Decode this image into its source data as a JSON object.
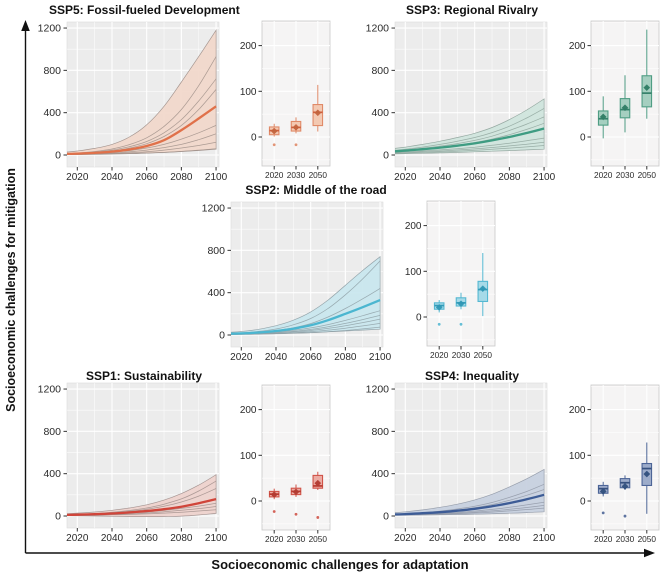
{
  "figure": {
    "y_axis_label": "Socioeconomic challenges for mitigation",
    "x_axis_label": "Socioeconomic challenges for adaptation"
  },
  "chart_data": [
    {
      "id": "ssp5",
      "title": "SSP5: Fossil-fueled Development",
      "colors": {
        "line": "#E0714A",
        "band": "#F2D8CB",
        "member": "#A0908A",
        "panel_bg": "#ECECEC",
        "box_panel_bg": "#F5F4F4",
        "box_fill": "#F3C9B2",
        "box_border": "#E08A68",
        "box_median": "#CE5F3C",
        "mean": "#C2653F",
        "outlier": "#E08A68"
      },
      "line_chart": {
        "type": "line",
        "x_label": "year",
        "x_ticks": [
          2020,
          2040,
          2060,
          2080,
          2100
        ],
        "y_ticks": [
          0,
          400,
          800,
          1200
        ],
        "ylim": [
          -113,
          1257
        ],
        "years": [
          2014,
          2020,
          2030,
          2040,
          2050,
          2060,
          2070,
          2080,
          2090,
          2100
        ],
        "median": [
          10,
          13,
          20,
          32,
          52,
          85,
          140,
          235,
          345,
          460
        ],
        "band_upper": [
          28,
          38,
          62,
          100,
          170,
          285,
          460,
          690,
          930,
          1180
        ],
        "band_lower": [
          4,
          5,
          7,
          10,
          14,
          19,
          25,
          33,
          43,
          55
        ],
        "members": [
          [
            14,
            19,
            33,
            57,
            98,
            163,
            270,
            430,
            655,
            930
          ],
          [
            12,
            16,
            27,
            46,
            78,
            128,
            210,
            335,
            510,
            720
          ],
          [
            10,
            14,
            23,
            39,
            65,
            107,
            175,
            280,
            430,
            620
          ],
          [
            8,
            10,
            16,
            26,
            42,
            66,
            100,
            150,
            210,
            280
          ],
          [
            6,
            8,
            12,
            19,
            30,
            46,
            70,
            100,
            145,
            200
          ],
          [
            5,
            6,
            9,
            14,
            21,
            31,
            46,
            66,
            90,
            120
          ],
          [
            4,
            5,
            7,
            9,
            13,
            18,
            25,
            34,
            46,
            60
          ]
        ]
      },
      "boxplot": {
        "type": "boxplot",
        "y_ticks": [
          0,
          100,
          200
        ],
        "ylim": [
          -63,
          254
        ],
        "categories": [
          "2020",
          "2030",
          "2050"
        ],
        "boxes": [
          {
            "lo": 1,
            "q1": 5,
            "median": 14,
            "mean": 13,
            "q3": 22,
            "hi": 29,
            "outliers": [
              -17
            ]
          },
          {
            "lo": 8,
            "q1": 13,
            "median": 21,
            "mean": 21,
            "q3": 34,
            "hi": 43,
            "outliers": [
              -17
            ]
          },
          {
            "lo": 12,
            "q1": 25,
            "median": 54,
            "mean": 53,
            "q3": 71,
            "hi": 114,
            "outliers": []
          }
        ]
      }
    },
    {
      "id": "ssp3",
      "title": "SSP3: Regional Rivalry",
      "colors": {
        "line": "#3E9C82",
        "band": "#CFE5DD",
        "member": "#8FA49C",
        "panel_bg": "#ECECEC",
        "box_panel_bg": "#F5F4F4",
        "box_fill": "#A5CFC0",
        "box_border": "#4F9D84",
        "box_median": "#35816A",
        "mean": "#2E7C64",
        "outlier": "#4F9D84"
      },
      "line_chart": {
        "type": "line",
        "x_label": "year",
        "x_ticks": [
          2020,
          2040,
          2060,
          2080,
          2100
        ],
        "y_ticks": [
          0,
          400,
          800,
          1200
        ],
        "ylim": [
          -113,
          1257
        ],
        "years": [
          2014,
          2020,
          2030,
          2040,
          2050,
          2060,
          2070,
          2080,
          2090,
          2100
        ],
        "median": [
          35,
          42,
          55,
          70,
          88,
          110,
          138,
          170,
          208,
          250
        ],
        "band_upper": [
          62,
          75,
          100,
          130,
          165,
          205,
          260,
          335,
          425,
          530
        ],
        "band_lower": [
          10,
          12,
          16,
          20,
          25,
          30,
          36,
          42,
          48,
          55
        ],
        "members": [
          [
            45,
            55,
            75,
            100,
            130,
            165,
            212,
            272,
            350,
            440
          ],
          [
            40,
            48,
            64,
            84,
            108,
            138,
            178,
            232,
            292,
            360
          ],
          [
            35,
            42,
            56,
            72,
            92,
            118,
            150,
            192,
            242,
            300
          ],
          [
            25,
            30,
            38,
            48,
            60,
            74,
            92,
            112,
            135,
            160
          ],
          [
            20,
            24,
            30,
            38,
            47,
            58,
            71,
            86,
            102,
            120
          ],
          [
            15,
            18,
            23,
            29,
            36,
            44,
            54,
            65,
            77,
            90
          ]
        ]
      },
      "boxplot": {
        "type": "boxplot",
        "y_ticks": [
          0,
          100,
          200
        ],
        "ylim": [
          -63,
          254
        ],
        "categories": [
          "2020",
          "2030",
          "2050"
        ],
        "boxes": [
          {
            "lo": -3,
            "q1": 26,
            "median": 40,
            "mean": 44,
            "q3": 57,
            "hi": 89,
            "outliers": []
          },
          {
            "lo": 10,
            "q1": 42,
            "median": 60,
            "mean": 64,
            "q3": 84,
            "hi": 135,
            "outliers": []
          },
          {
            "lo": 40,
            "q1": 66,
            "median": 96,
            "mean": 108,
            "q3": 134,
            "hi": 235,
            "outliers": []
          }
        ]
      }
    },
    {
      "id": "ssp2",
      "title": "SSP2: Middle of the road",
      "colors": {
        "line": "#4BB6D0",
        "band": "#C9E7EF",
        "member": "#8FA0A6",
        "panel_bg": "#ECECEC",
        "box_panel_bg": "#F5F4F4",
        "box_fill": "#A6DAE8",
        "box_border": "#55B8D2",
        "box_median": "#339BB8",
        "mean": "#2F97B5",
        "outlier": "#55B8D2"
      },
      "line_chart": {
        "type": "line",
        "x_label": "year",
        "x_ticks": [
          2020,
          2040,
          2060,
          2080,
          2100
        ],
        "y_ticks": [
          0,
          400,
          800,
          1200
        ],
        "ylim": [
          -113,
          1257
        ],
        "years": [
          2014,
          2020,
          2030,
          2040,
          2050,
          2060,
          2070,
          2080,
          2090,
          2100
        ],
        "median": [
          12,
          15,
          24,
          38,
          60,
          92,
          140,
          200,
          263,
          330
        ],
        "band_upper": [
          26,
          33,
          54,
          88,
          140,
          218,
          330,
          470,
          610,
          740
        ],
        "band_lower": [
          5,
          6,
          9,
          12,
          17,
          23,
          30,
          38,
          46,
          55
        ],
        "members": [
          [
            15,
            20,
            34,
            57,
            96,
            156,
            250,
            380,
            530,
            700
          ],
          [
            12,
            16,
            26,
            42,
            68,
            108,
            170,
            250,
            342,
            440
          ],
          [
            9,
            12,
            18,
            28,
            44,
            67,
            98,
            138,
            182,
            230
          ],
          [
            8,
            10,
            15,
            23,
            35,
            53,
            78,
            110,
            146,
            185
          ],
          [
            7,
            9,
            13,
            19,
            29,
            43,
            62,
            88,
            117,
            150
          ],
          [
            6,
            8,
            11,
            15,
            22,
            32,
            46,
            64,
            86,
            110
          ],
          [
            5,
            6,
            8,
            11,
            16,
            22,
            31,
            43,
            58,
            75
          ]
        ]
      },
      "boxplot": {
        "type": "boxplot",
        "y_ticks": [
          0,
          100,
          200
        ],
        "ylim": [
          -63,
          254
        ],
        "categories": [
          "2020",
          "2030",
          "2050"
        ],
        "boxes": [
          {
            "lo": 10,
            "q1": 17,
            "median": 25,
            "mean": 21,
            "q3": 31,
            "hi": 37,
            "outliers": [
              -16
            ]
          },
          {
            "lo": 17,
            "q1": 24,
            "median": 31,
            "mean": 29,
            "q3": 42,
            "hi": 53,
            "outliers": [
              -16
            ]
          },
          {
            "lo": 2,
            "q1": 34,
            "median": 60,
            "mean": 62,
            "q3": 78,
            "hi": 140,
            "outliers": []
          }
        ]
      }
    },
    {
      "id": "ssp1",
      "title": "SSP1: Sustainability",
      "colors": {
        "line": "#D0453A",
        "band": "#EFD2CD",
        "member": "#A08E8B",
        "panel_bg": "#ECECEC",
        "box_panel_bg": "#F5F4F4",
        "box_fill": "#ECABA3",
        "box_border": "#D05348",
        "box_median": "#B83A30",
        "mean": "#B23A31",
        "outlier": "#D05348"
      },
      "line_chart": {
        "type": "line",
        "x_label": "year",
        "x_ticks": [
          2020,
          2040,
          2060,
          2080,
          2100
        ],
        "y_ticks": [
          0,
          400,
          800,
          1200
        ],
        "ylim": [
          -113,
          1257
        ],
        "years": [
          2014,
          2020,
          2030,
          2040,
          2050,
          2060,
          2070,
          2080,
          2090,
          2100
        ],
        "median": [
          10,
          12,
          17,
          24,
          34,
          47,
          64,
          88,
          120,
          160
        ],
        "band_upper": [
          22,
          27,
          38,
          54,
          76,
          106,
          150,
          212,
          292,
          390
        ],
        "band_lower": [
          3,
          2,
          0,
          -3,
          -5,
          -6,
          -5,
          -1,
          9,
          25
        ],
        "members": [
          [
            12,
            15,
            23,
            35,
            52,
            76,
            112,
            162,
            236,
            330
          ],
          [
            11,
            14,
            20,
            30,
            44,
            64,
            92,
            132,
            188,
            260
          ],
          [
            8,
            10,
            14,
            19,
            27,
            38,
            53,
            72,
            94,
            120
          ],
          [
            7,
            8,
            11,
            15,
            21,
            29,
            40,
            54,
            70,
            90
          ],
          [
            5,
            6,
            8,
            11,
            15,
            20,
            27,
            36,
            47,
            60
          ]
        ]
      },
      "boxplot": {
        "type": "boxplot",
        "y_ticks": [
          0,
          100,
          200
        ],
        "ylim": [
          -63,
          254
        ],
        "categories": [
          "2020",
          "2030",
          "2050"
        ],
        "boxes": [
          {
            "lo": 4,
            "q1": 9,
            "median": 15,
            "mean": 14,
            "q3": 21,
            "hi": 27,
            "outliers": [
              -23
            ]
          },
          {
            "lo": 9,
            "q1": 14,
            "median": 21,
            "mean": 20,
            "q3": 28,
            "hi": 36,
            "outliers": [
              -29
            ]
          },
          {
            "lo": 24,
            "q1": 28,
            "median": 33,
            "mean": 39,
            "q3": 56,
            "hi": 64,
            "outliers": [
              -36
            ]
          }
        ]
      }
    },
    {
      "id": "ssp4",
      "title": "SSP4: Inequality",
      "colors": {
        "line": "#3D5C96",
        "band": "#C7D0E0",
        "member": "#9098A6",
        "panel_bg": "#ECECEC",
        "box_panel_bg": "#F5F4F4",
        "box_fill": "#9DACCA",
        "box_border": "#4D6597",
        "box_median": "#37517F",
        "mean": "#31507E",
        "outlier": "#4D6597"
      },
      "line_chart": {
        "type": "line",
        "x_label": "year",
        "x_ticks": [
          2020,
          2040,
          2060,
          2080,
          2100
        ],
        "y_ticks": [
          0,
          400,
          800,
          1200
        ],
        "ylim": [
          -113,
          1257
        ],
        "years": [
          2014,
          2020,
          2030,
          2040,
          2050,
          2060,
          2070,
          2080,
          2090,
          2100
        ],
        "median": [
          15,
          18,
          26,
          36,
          50,
          68,
          92,
          122,
          158,
          200
        ],
        "band_upper": [
          32,
          40,
          58,
          82,
          112,
          152,
          205,
          275,
          352,
          440
        ],
        "band_lower": [
          6,
          7,
          9,
          11,
          14,
          17,
          21,
          26,
          32,
          40
        ],
        "members": [
          [
            18,
            22,
            32,
            46,
            66,
            92,
            128,
            176,
            232,
            300
          ],
          [
            16,
            20,
            28,
            40,
            56,
            78,
            108,
            148,
            196,
            250
          ],
          [
            11,
            13,
            18,
            25,
            34,
            46,
            62,
            82,
            105,
            130
          ],
          [
            9,
            11,
            15,
            20,
            27,
            36,
            48,
            63,
            80,
            100
          ],
          [
            8,
            9,
            12,
            16,
            21,
            28,
            37,
            48,
            61,
            75
          ]
        ]
      },
      "boxplot": {
        "type": "boxplot",
        "y_ticks": [
          0,
          100,
          200
        ],
        "ylim": [
          -63,
          254
        ],
        "categories": [
          "2020",
          "2030",
          "2050"
        ],
        "boxes": [
          {
            "lo": 10,
            "q1": 17,
            "median": 27,
            "mean": 21,
            "q3": 34,
            "hi": 42,
            "outliers": [
              -26
            ]
          },
          {
            "lo": 24,
            "q1": 29,
            "median": 40,
            "mean": 32,
            "q3": 49,
            "hi": 56,
            "outliers": [
              -33
            ]
          },
          {
            "lo": -28,
            "q1": 34,
            "median": 71,
            "mean": 59,
            "q3": 82,
            "hi": 128,
            "outliers": []
          }
        ]
      }
    }
  ]
}
